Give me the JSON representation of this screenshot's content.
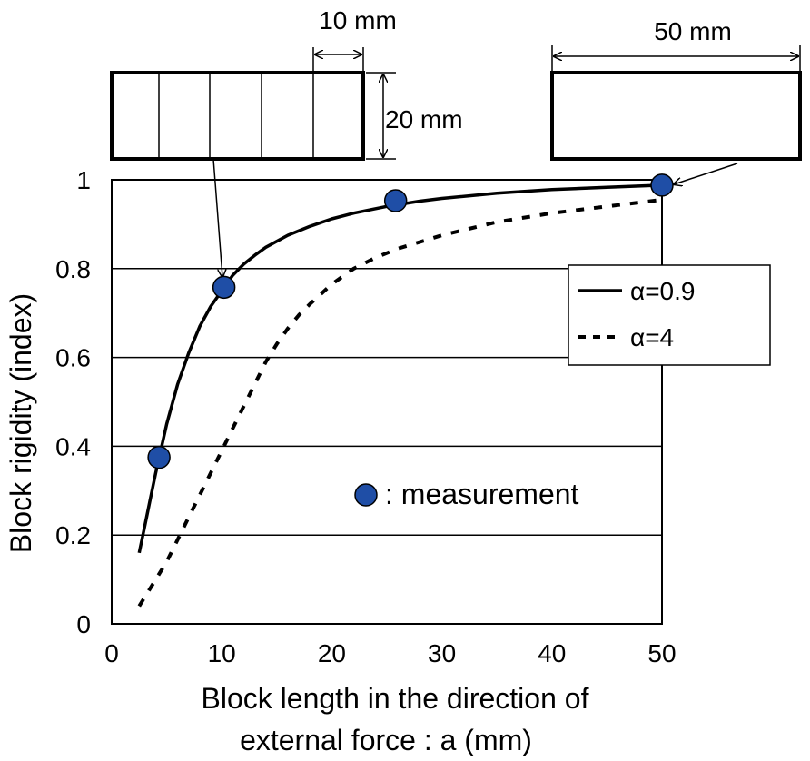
{
  "chart_data": {
    "type": "line",
    "xlabel_line1": "Block length in the direction of",
    "xlabel_line2": "external force : a (mm)",
    "ylabel": "Block rigidity (index)",
    "xlim": [
      0,
      50
    ],
    "ylim": [
      0,
      1
    ],
    "x_ticks": [
      0,
      10,
      20,
      30,
      40,
      50
    ],
    "y_ticks": [
      0,
      0.2,
      0.4,
      0.6,
      0.8,
      1
    ],
    "y_tick_labels": [
      "0",
      "0.2",
      "0.4",
      "0.6",
      "0.8",
      "1"
    ],
    "grid": "horizontal",
    "series": [
      {
        "name": "α=0.9",
        "style": "solid",
        "x": [
          2.5,
          3,
          3.5,
          4,
          5,
          6,
          7,
          8,
          9,
          10,
          11,
          12,
          13,
          14,
          16,
          18,
          20,
          22,
          25,
          28,
          30,
          35,
          40,
          45,
          50
        ],
        "y": [
          0.16,
          0.22,
          0.28,
          0.34,
          0.45,
          0.54,
          0.61,
          0.67,
          0.715,
          0.75,
          0.785,
          0.81,
          0.83,
          0.848,
          0.875,
          0.895,
          0.912,
          0.925,
          0.94,
          0.952,
          0.958,
          0.97,
          0.978,
          0.983,
          0.988
        ]
      },
      {
        "name": "α=4",
        "style": "dashed",
        "x": [
          2.5,
          4,
          5,
          6,
          7,
          8,
          9,
          10,
          11,
          12,
          13,
          14,
          15,
          16,
          17,
          18,
          20,
          22,
          24,
          26,
          28,
          30,
          35,
          40,
          45,
          50
        ],
        "y": [
          0.04,
          0.1,
          0.14,
          0.19,
          0.24,
          0.29,
          0.34,
          0.39,
          0.44,
          0.49,
          0.54,
          0.59,
          0.63,
          0.665,
          0.695,
          0.72,
          0.765,
          0.8,
          0.825,
          0.845,
          0.86,
          0.875,
          0.905,
          0.925,
          0.94,
          0.955
        ]
      }
    ],
    "measurements": {
      "label": ": measurement",
      "x": [
        4.3,
        10.2,
        25.8,
        50
      ],
      "y": [
        0.375,
        0.758,
        0.953,
        0.988
      ]
    },
    "legend_position": "right"
  },
  "diagrams": {
    "segmented_block": {
      "segment_count": 5,
      "width_label": "10 mm",
      "height_label": "20 mm"
    },
    "solid_block": {
      "width_label": "50 mm"
    }
  },
  "colors": {
    "marker_fill": "#1F4EA6",
    "line": "#000000",
    "grid": "#000000"
  }
}
